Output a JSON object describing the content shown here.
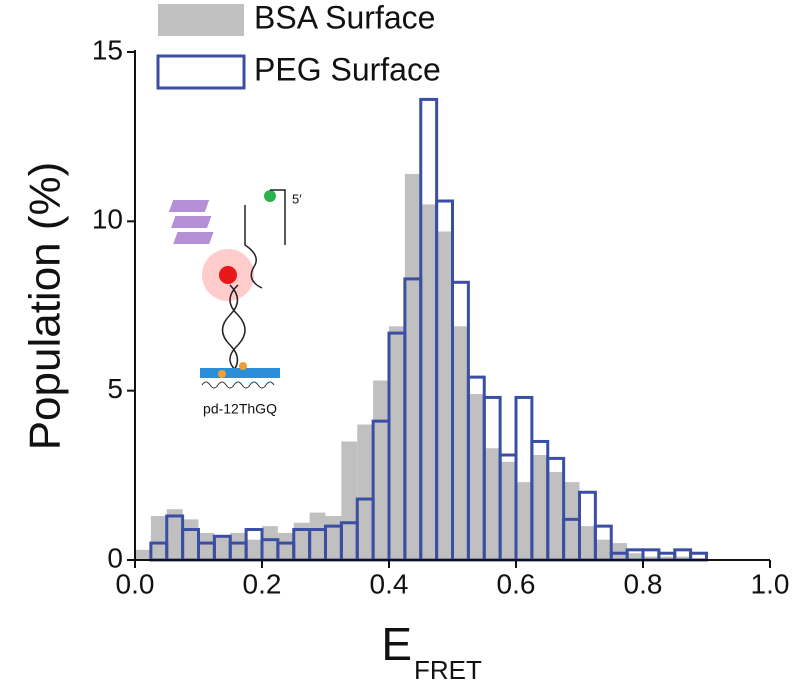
{
  "chart_data": {
    "type": "histogram",
    "xlabel": "E",
    "xlabel_subscript": "FRET",
    "ylabel": "Population (%)",
    "bins": [
      0,
      0.025,
      0.05,
      0.075,
      0.1,
      0.125,
      0.15,
      0.175,
      0.2,
      0.225,
      0.25,
      0.275,
      0.3,
      0.325,
      0.35,
      0.375,
      0.4,
      0.425,
      0.45,
      0.475,
      0.5,
      0.525,
      0.55,
      0.575,
      0.6,
      0.625,
      0.65,
      0.675,
      0.7,
      0.725,
      0.75,
      0.775,
      0.8,
      0.825,
      0.85,
      0.875,
      0.9
    ],
    "series": [
      {
        "name": "BSA Surface",
        "color": "#c0c0c0",
        "style": "filled",
        "values": [
          0.3,
          1.3,
          1.5,
          1.2,
          0.8,
          0.7,
          0.8,
          0.6,
          1.0,
          0.8,
          1.1,
          1.4,
          1.3,
          3.5,
          4.0,
          5.3,
          6.9,
          11.4,
          10.5,
          9.7,
          6.9,
          4.9,
          3.3,
          2.9,
          2.3,
          3.1,
          2.6,
          2.3,
          1.0,
          0.6,
          0.5,
          0.2,
          0.1,
          0.1,
          0.1,
          0.05
        ]
      },
      {
        "name": "PEG Surface",
        "color": "#3a4fa3",
        "style": "outline",
        "values": [
          0,
          0.5,
          1.3,
          0.9,
          0.5,
          0.7,
          0.5,
          0.9,
          0.6,
          0.5,
          0.9,
          0.9,
          1.0,
          1.1,
          1.8,
          4.1,
          6.7,
          8.3,
          13.6,
          10.6,
          8.2,
          5.4,
          4.8,
          3.1,
          4.8,
          3.5,
          3.0,
          1.2,
          2.0,
          1.0,
          0.2,
          0.3,
          0.3,
          0.2,
          0.3,
          0.2
        ]
      }
    ],
    "xlim": [
      0,
      1
    ],
    "ylim": [
      0,
      15
    ],
    "xticks": [
      {
        "value": 0,
        "label": "0.0"
      },
      0.2,
      0.4,
      0.6,
      0.8,
      {
        "value": 1,
        "label": "1.0"
      }
    ],
    "yticks": [
      0,
      5,
      10,
      15
    ],
    "legend": "upper left",
    "annotations": [
      "5′",
      "pd-12ThGQ"
    ]
  }
}
